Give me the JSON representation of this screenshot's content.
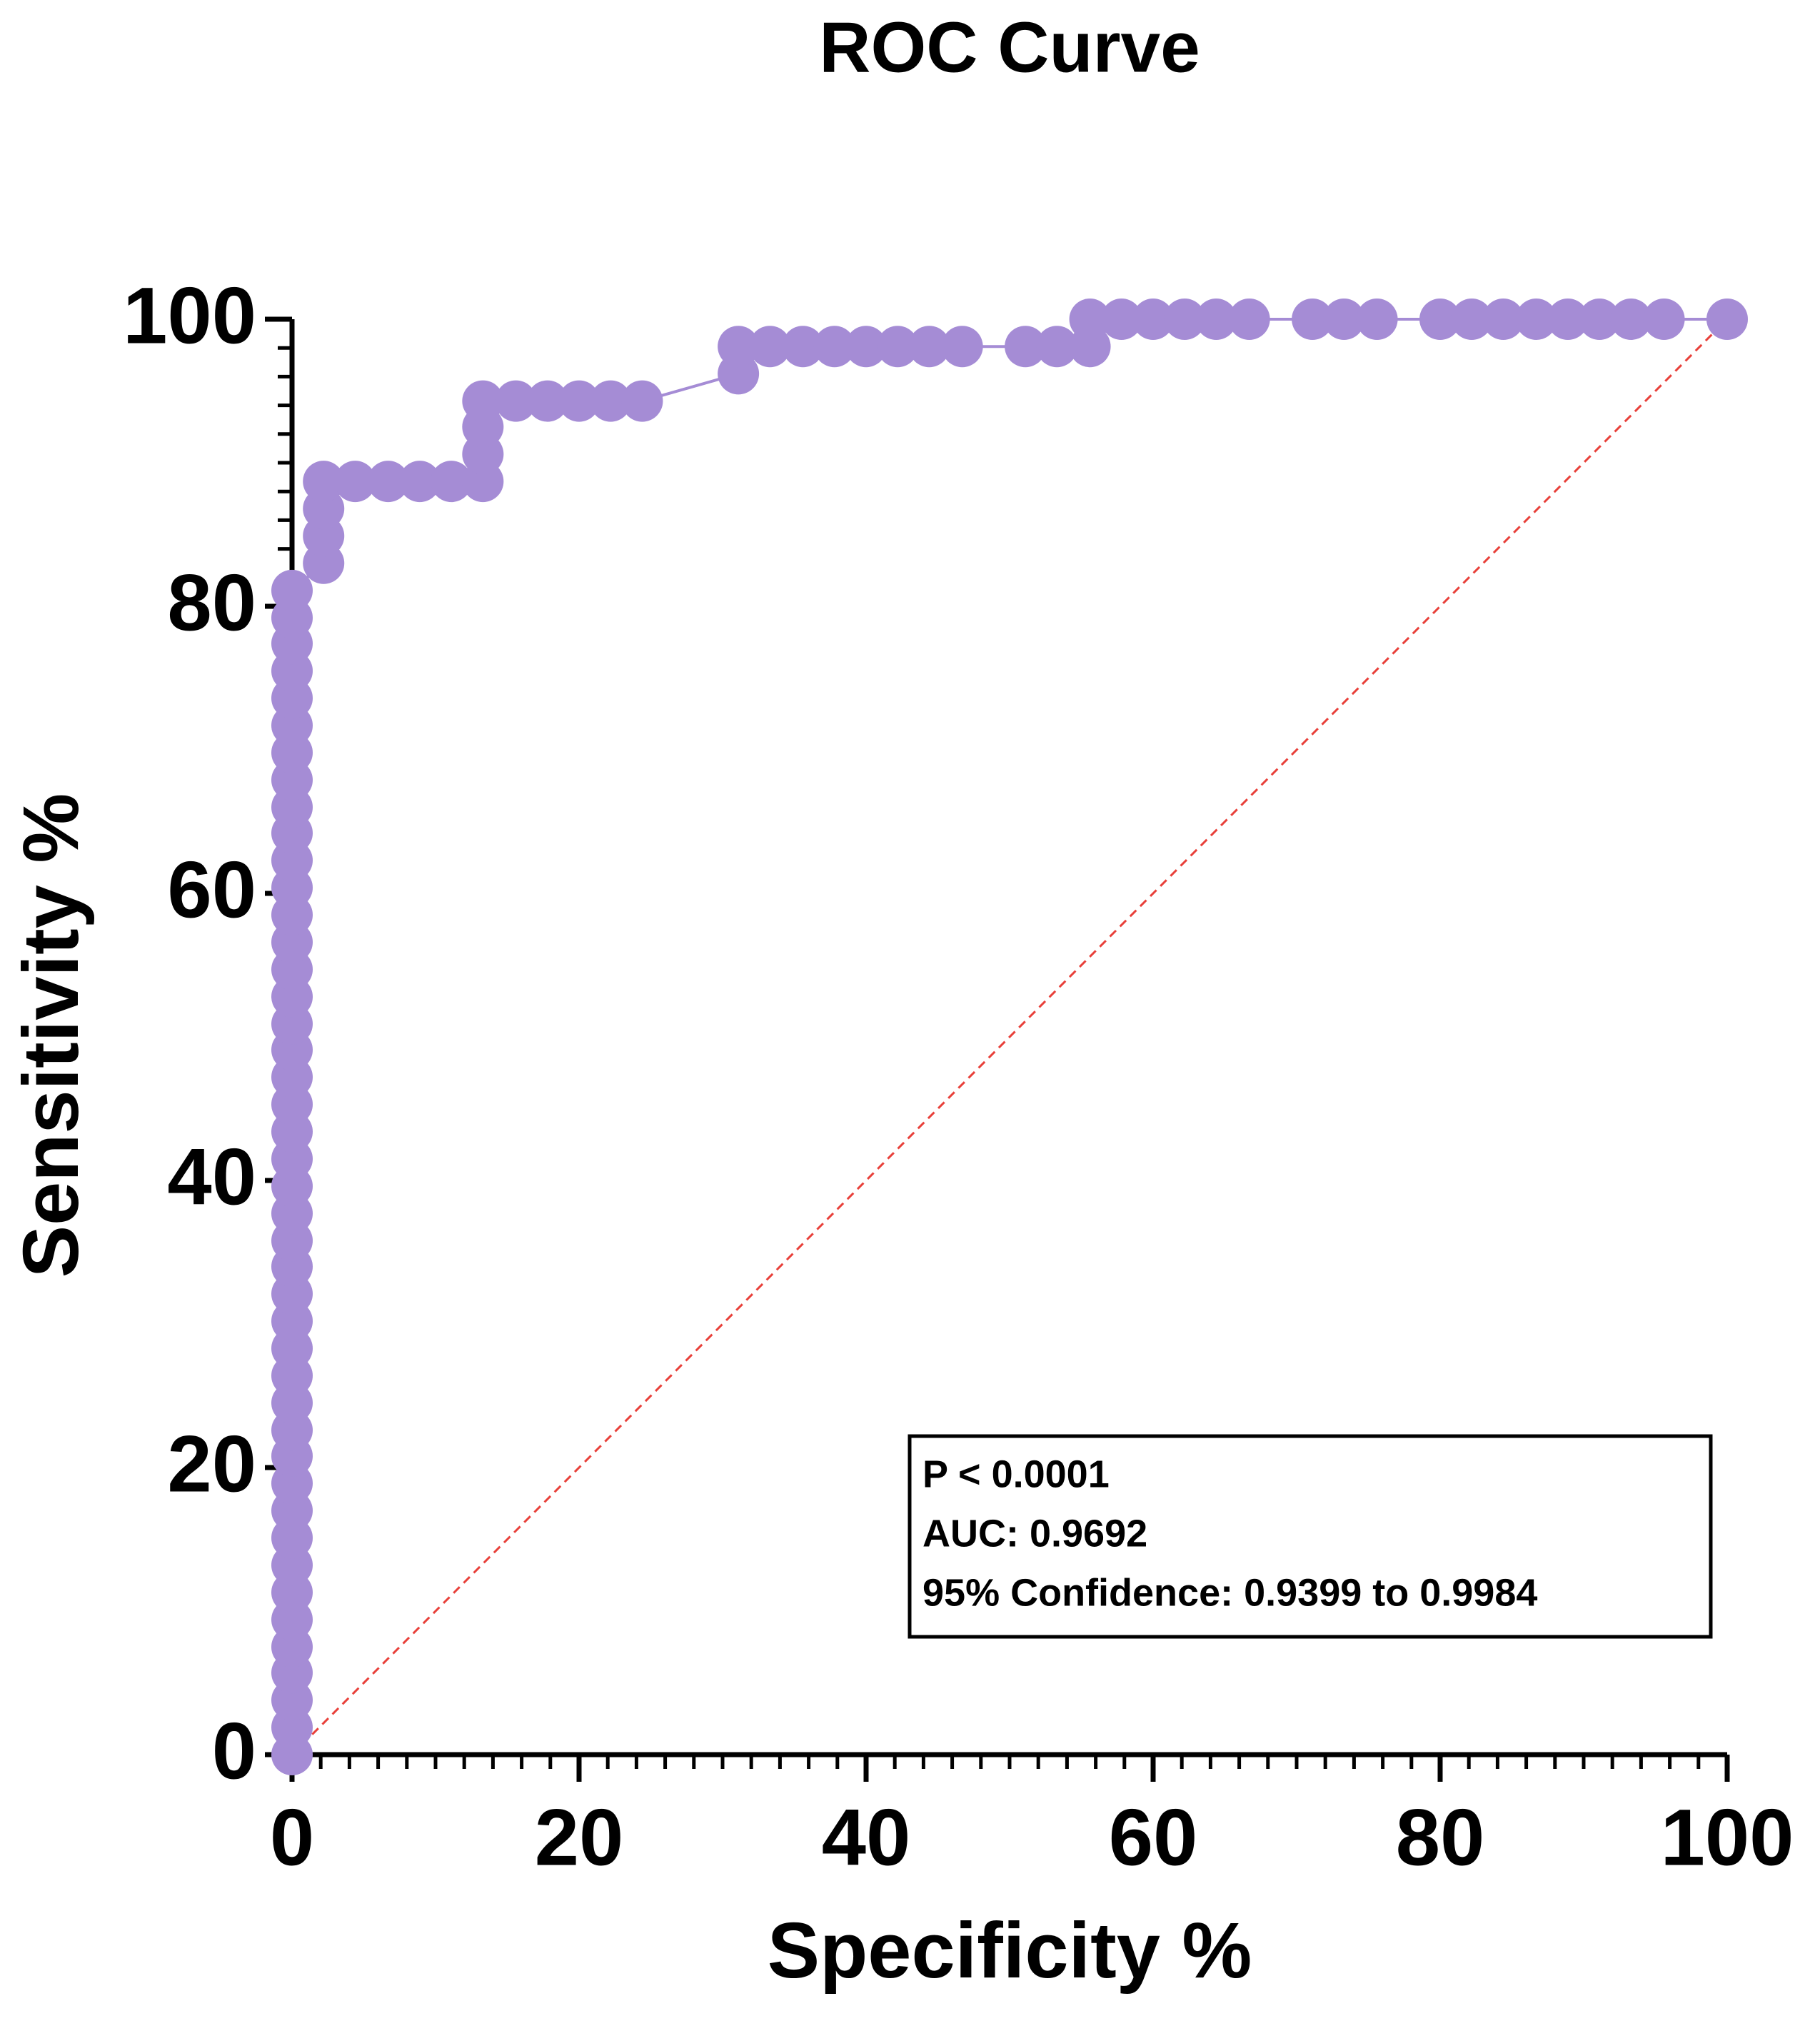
{
  "chart_data": {
    "type": "line",
    "title": "ROC Curve",
    "x_label": "Specificity %",
    "y_label": "Sensitivity %",
    "x": [
      0,
      0,
      0,
      0,
      0,
      0,
      0,
      0,
      0,
      0,
      0,
      0,
      0,
      0,
      0,
      0,
      0,
      0,
      0,
      0,
      0,
      0,
      0,
      0,
      0,
      0,
      0,
      0,
      0,
      0,
      0,
      0,
      0,
      0,
      0,
      0,
      0,
      0,
      0,
      0,
      0,
      0,
      0,
      0,
      2.2,
      2.2,
      2.2,
      2.2,
      4.4,
      6.7,
      8.9,
      11.1,
      13.3,
      13.3,
      13.3,
      13.3,
      15.6,
      17.8,
      20,
      22.2,
      24.4,
      31.1,
      31.1,
      33.3,
      35.6,
      37.8,
      40,
      42.2,
      44.4,
      46.7,
      51.1,
      53.3,
      55.6,
      55.6,
      57.8,
      60,
      62.2,
      64.4,
      66.7,
      71.1,
      73.3,
      75.6,
      80,
      82.2,
      84.4,
      86.7,
      88.9,
      91.1,
      93.3,
      95.6,
      100
    ],
    "series": [
      {
        "name": "ROC",
        "color": "#a58cd5",
        "values": [
          0,
          1.9,
          3.8,
          5.7,
          7.5,
          9.4,
          11.3,
          13.2,
          15.1,
          17,
          18.9,
          20.8,
          22.6,
          24.5,
          26.4,
          28.3,
          30.2,
          32.1,
          34,
          35.8,
          37.7,
          39.6,
          41.5,
          43.4,
          45.3,
          47.2,
          49.1,
          50.9,
          52.8,
          54.7,
          56.6,
          58.5,
          60.4,
          62.3,
          64.2,
          66,
          67.9,
          69.8,
          71.7,
          73.6,
          75.5,
          77.4,
          79.2,
          81.1,
          83,
          84.9,
          86.8,
          88.7,
          88.7,
          88.7,
          88.7,
          88.7,
          88.7,
          90.6,
          92.5,
          94.3,
          94.3,
          94.3,
          94.3,
          94.3,
          94.3,
          96.2,
          98.1,
          98.1,
          98.1,
          98.1,
          98.1,
          98.1,
          98.1,
          98.1,
          98.1,
          98.1,
          98.1,
          100,
          100,
          100,
          100,
          100,
          100,
          100,
          100,
          100,
          100,
          100,
          100,
          100,
          100,
          100,
          100,
          100,
          100
        ]
      }
    ],
    "reference_line": {
      "color": "#e8403a",
      "style": "dashed"
    },
    "xlim": [
      0,
      100
    ],
    "ylim": [
      0,
      100
    ],
    "xticks": [
      0,
      20,
      40,
      60,
      80,
      100
    ],
    "yticks": [
      0,
      20,
      40,
      60,
      80,
      100
    ],
    "minor_tick_interval": 2,
    "annotations": [
      "P < 0.0001",
      "AUC: 0.9692",
      "95% Confidence: 0.9399 to 0.9984"
    ]
  }
}
